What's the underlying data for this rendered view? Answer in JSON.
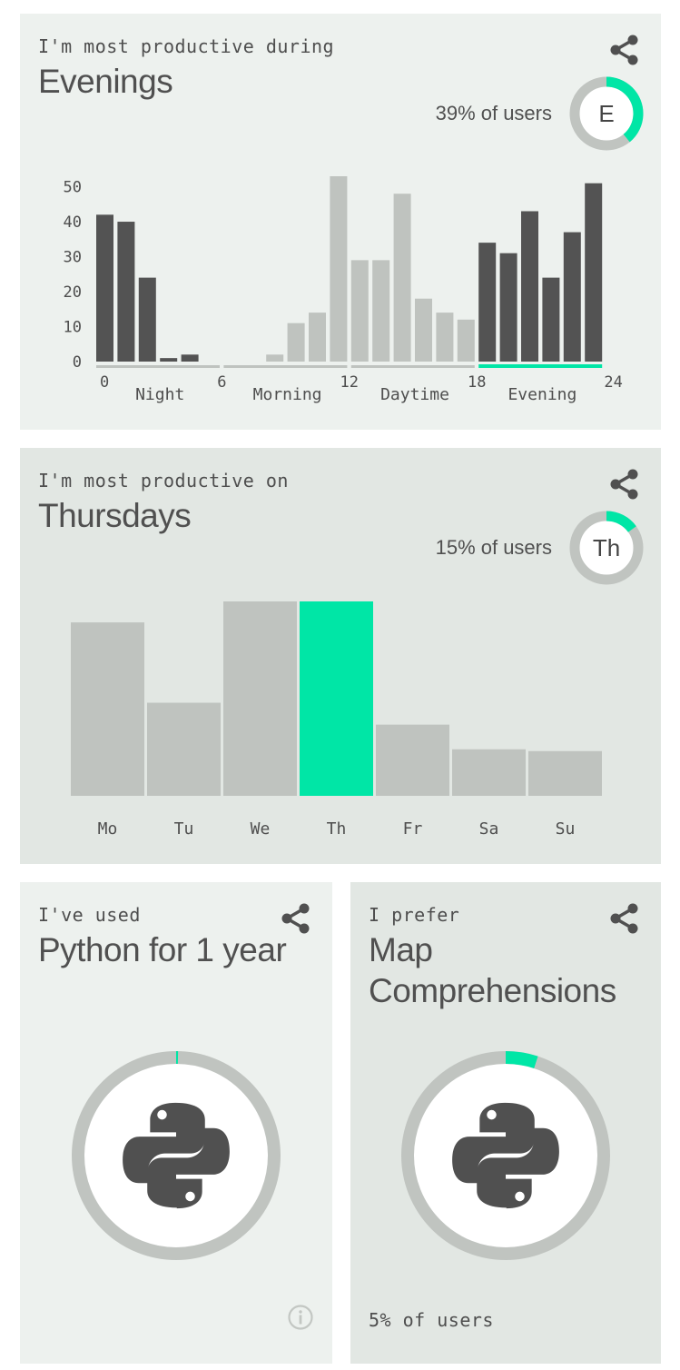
{
  "colors": {
    "accent": "#00e6a6",
    "dark_bar": "#535353",
    "light_bar": "#bfc3bf",
    "ring_bg": "#c0c4c0"
  },
  "card_hours": {
    "kicker": "I'm most productive during",
    "headline": "Evenings",
    "percent_text": "39% of users",
    "percent_value": 39,
    "badge": "E",
    "share_icon": "share-icon",
    "chart_data": {
      "type": "bar",
      "x": [
        0,
        1,
        2,
        3,
        4,
        5,
        6,
        7,
        8,
        9,
        10,
        11,
        12,
        13,
        14,
        15,
        16,
        17,
        18,
        19,
        20,
        21,
        22,
        23
      ],
      "values": [
        42,
        40,
        24,
        1,
        2,
        0,
        0,
        0,
        2,
        11,
        14,
        53,
        29,
        29,
        48,
        18,
        14,
        12,
        34,
        31,
        43,
        24,
        37,
        51
      ],
      "highlighted_range": [
        18,
        24
      ],
      "ylim": [
        0,
        53
      ],
      "yticks": [
        "0",
        "10",
        "20",
        "30",
        "40",
        "50"
      ],
      "xticks": [
        "0",
        "6",
        "12",
        "18",
        "24"
      ],
      "periods": [
        "Night",
        "Morning",
        "Daytime",
        "Evening"
      ],
      "selected_period": "Evening"
    }
  },
  "card_days": {
    "kicker": "I'm most productive on",
    "headline": "Thursdays",
    "percent_text": "15% of users",
    "percent_value": 15,
    "badge": "Th",
    "share_icon": "share-icon",
    "chart_data": {
      "type": "bar",
      "categories": [
        "Mo",
        "Tu",
        "We",
        "Th",
        "Fr",
        "Sa",
        "Su"
      ],
      "values": [
        19,
        10.2,
        21.3,
        21.3,
        7.8,
        5.1,
        4.9
      ],
      "highlighted": "Th"
    }
  },
  "card_python": {
    "kicker": "I've used",
    "headline": "Python for 1 year",
    "ring_percent": 0.3,
    "icon": "python-logo-icon",
    "info_icon": "info-icon",
    "share_icon": "share-icon"
  },
  "card_pref": {
    "kicker": "I prefer",
    "headline_line1": "Map",
    "headline_line2": "Comprehensions",
    "ring_percent": 5,
    "footer": "5% of users",
    "icon": "python-logo-icon",
    "share_icon": "share-icon"
  }
}
